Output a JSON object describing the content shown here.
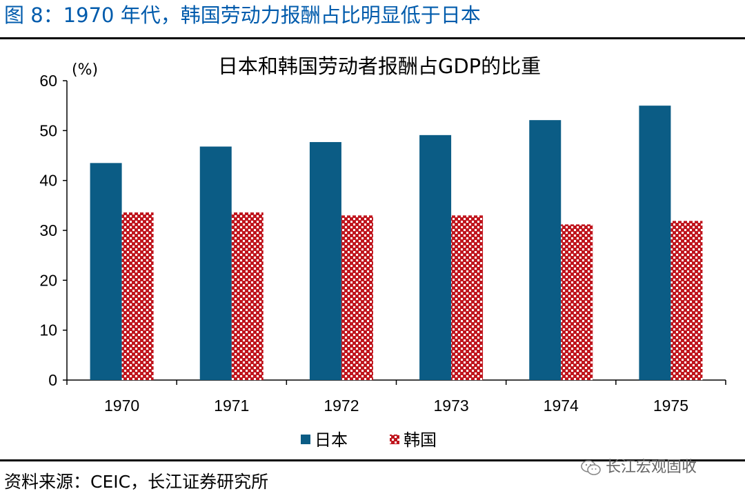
{
  "figure": {
    "title": "图 8：1970 年代，韩国劳动力报酬占比明显低于日本",
    "source": "资料来源：CEIC，长江证券研究所",
    "watermark": "长江宏观固收",
    "watermark_icon": "wechat-icon"
  },
  "colors": {
    "title_blue": "#005BAC",
    "japan": "#0B5C85",
    "korea": "#C0161E",
    "rule": "#000000"
  },
  "chart_data": {
    "type": "bar",
    "title": "日本和韩国劳动者报酬占GDP的比重",
    "unit_label": "(%)",
    "xlabel": "",
    "ylabel": "",
    "ylim": [
      0,
      60
    ],
    "yticks": [
      0,
      10,
      20,
      30,
      40,
      50,
      60
    ],
    "categories": [
      "1970",
      "1971",
      "1972",
      "1973",
      "1974",
      "1975"
    ],
    "series": [
      {
        "name": "日本",
        "pattern": "solid",
        "values": [
          43.5,
          46.8,
          47.7,
          49.1,
          52.1,
          55.0
        ]
      },
      {
        "name": "韩国",
        "pattern": "dotted",
        "values": [
          33.6,
          33.6,
          33.0,
          33.0,
          31.2,
          31.9
        ]
      }
    ],
    "legend_position": "bottom-center",
    "grid": false
  }
}
